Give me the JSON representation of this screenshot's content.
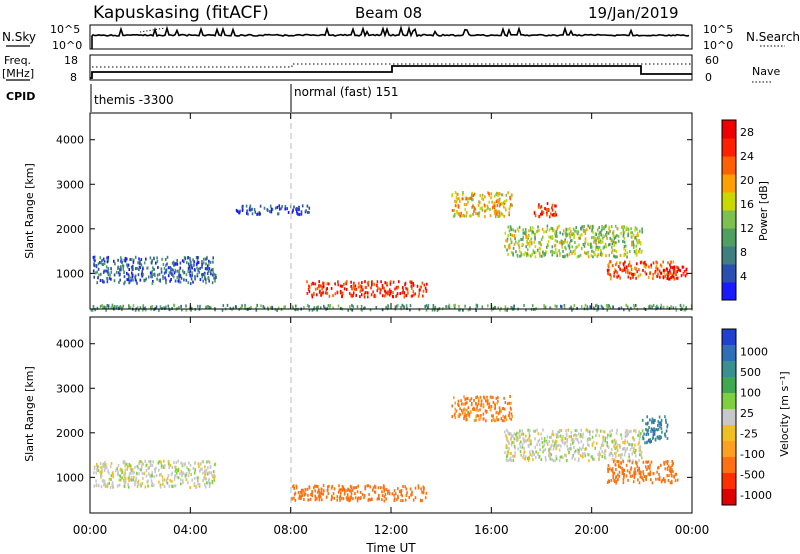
{
  "header": {
    "station": "Kapuskasing (fitACF)",
    "beam": "Beam 08",
    "date": "19/Jan/2019"
  },
  "top_panels": {
    "nsky_label": "N.Sky",
    "nsky_ticks_left": [
      "10^5",
      "10^0"
    ],
    "nsky_ticks_right": [
      "10^5",
      "10^0"
    ],
    "nsearch_label": "N.Search",
    "freq_label": "Freq.",
    "freq_unit": "[MHz]",
    "freq_ticks": [
      "18",
      "8"
    ],
    "nave_ticks": [
      "60",
      "0"
    ],
    "nave_label": "Nave",
    "cpid_label": "CPID",
    "cpid_modes": [
      "themis -3300",
      "normal (fast) 151"
    ]
  },
  "colors": {
    "power_scale": [
      "#1a1aff",
      "#2a4fb0",
      "#3f7f7f",
      "#4fa060",
      "#7dc050",
      "#c8d800",
      "#ffa000",
      "#ff6000",
      "#ff2000",
      "#ee0000"
    ],
    "velocity_scale": [
      "#2040d0",
      "#2f6fb8",
      "#3a8f90",
      "#3fa850",
      "#7ed040",
      "#c8c8c8",
      "#f0c020",
      "#ffa020",
      "#ff7010",
      "#ff3000",
      "#e00000"
    ]
  },
  "chart_data": [
    {
      "type": "heatmap",
      "panel": "power",
      "ylabel": "Slant Range [km]",
      "yticks": [
        "1000",
        "2000",
        "3000",
        "4000"
      ],
      "ylim": [
        200,
        4600
      ],
      "xticks": [
        "00:00",
        "04:00",
        "08:00",
        "12:00",
        "16:00",
        "20:00",
        "00:00"
      ],
      "xlim_hours": [
        0,
        24
      ],
      "colorbar_label": "Power [dB]",
      "colorbar_ticks": [
        "4",
        "8",
        "12",
        "16",
        "20",
        "24",
        "28"
      ],
      "colorbar_range": [
        0,
        30
      ],
      "echo_regions": [
        {
          "t": [
            0.1,
            5.0
          ],
          "range_km": [
            800,
            1400
          ],
          "value": 6
        },
        {
          "t": [
            5.8,
            8.8
          ],
          "range_km": [
            2350,
            2550
          ],
          "value": 4
        },
        {
          "t": [
            8.6,
            13.4
          ],
          "range_km": [
            500,
            850
          ],
          "value": 26
        },
        {
          "t": [
            14.4,
            16.8
          ],
          "range_km": [
            2300,
            2850
          ],
          "value": 18
        },
        {
          "t": [
            17.6,
            18.6
          ],
          "range_km": [
            2300,
            2600
          ],
          "value": 26
        },
        {
          "t": [
            16.5,
            22.0
          ],
          "range_km": [
            1400,
            2100
          ],
          "value": 14
        },
        {
          "t": [
            20.6,
            23.4
          ],
          "range_km": [
            900,
            1300
          ],
          "value": 24
        },
        {
          "t": [
            22.8,
            23.8
          ],
          "range_km": [
            900,
            1200
          ],
          "value": 28
        },
        {
          "t": [
            0.0,
            24.0
          ],
          "range_km": [
            200,
            320
          ],
          "value": 10
        }
      ]
    },
    {
      "type": "heatmap",
      "panel": "velocity",
      "ylabel": "Slant Range [km]",
      "yticks": [
        "1000",
        "2000",
        "3000",
        "4000"
      ],
      "ylim": [
        200,
        4600
      ],
      "xticks": [
        "00:00",
        "04:00",
        "08:00",
        "12:00",
        "16:00",
        "20:00",
        "00:00"
      ],
      "xlim_hours": [
        0,
        24
      ],
      "xlabel": "Time UT",
      "colorbar_label": "Velocity [m s⁻¹]",
      "colorbar_ticks": [
        "1000",
        "500",
        "100",
        "25",
        "-25",
        "-100",
        "-500",
        "-1000"
      ],
      "echo_regions": [
        {
          "t": [
            0.1,
            5.0
          ],
          "range_km": [
            800,
            1400
          ],
          "value": 0
        },
        {
          "t": [
            8.0,
            13.4
          ],
          "range_km": [
            500,
            850
          ],
          "value": -150
        },
        {
          "t": [
            14.4,
            16.8
          ],
          "range_km": [
            2300,
            2850
          ],
          "value": -120
        },
        {
          "t": [
            16.5,
            22.0
          ],
          "range_km": [
            1400,
            2100
          ],
          "value": 0
        },
        {
          "t": [
            20.6,
            23.4
          ],
          "range_km": [
            900,
            1400
          ],
          "value": -200
        },
        {
          "t": [
            22.0,
            23.0
          ],
          "range_km": [
            1800,
            2400
          ],
          "value": 300
        }
      ]
    }
  ]
}
